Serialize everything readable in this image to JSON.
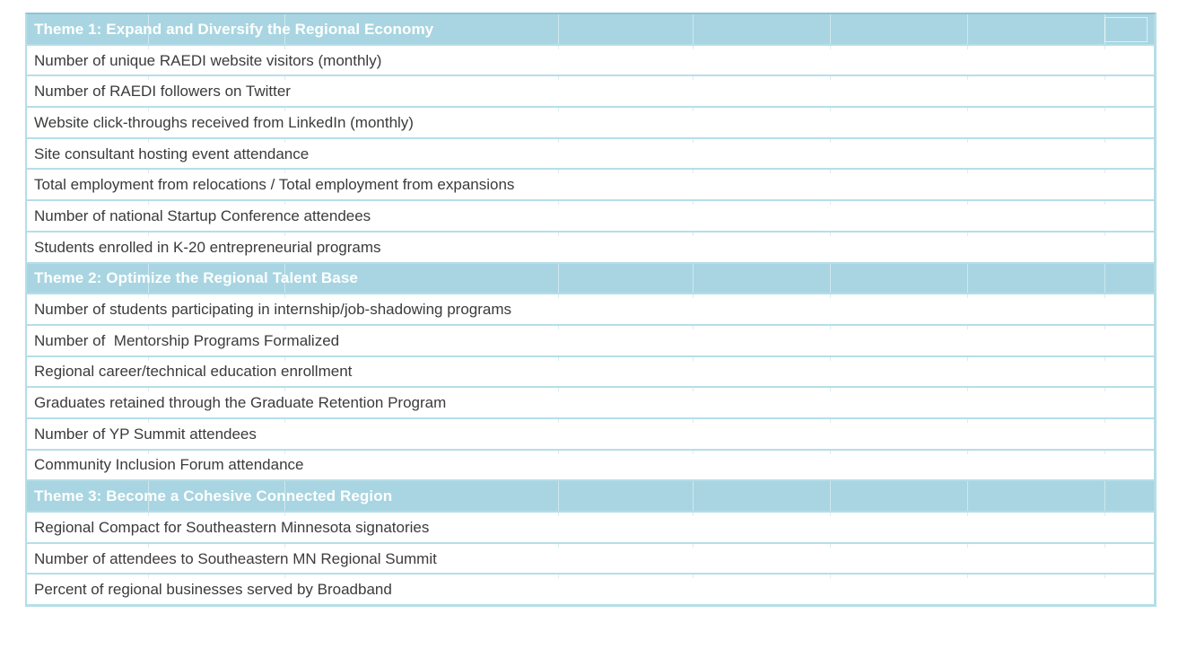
{
  "table": {
    "colors": {
      "header_bg": "#a8d5e1",
      "row_border": "#b5dee8",
      "top_border": "#8fc2d7",
      "text": "#3b3b3b",
      "header_text": "#ffffff"
    },
    "sections": [
      {
        "header": "Theme 1: Expand and Diversify the Regional Economy",
        "rows": [
          "Number of unique RAEDI website visitors (monthly)",
          "Number of RAEDI followers on Twitter",
          "Website click-throughs received from LinkedIn (monthly)",
          "Site consultant hosting event attendance",
          "Total employment from relocations / Total employment from expansions",
          "Number of national Startup Conference attendees",
          "Students enrolled in K-20 entrepreneurial programs"
        ]
      },
      {
        "header": "Theme 2: Optimize the Regional Talent Base",
        "rows": [
          "Number of students participating in internship/job-shadowing programs",
          "Number of  Mentorship Programs Formalized",
          "Regional career/technical education enrollment",
          "Graduates retained through the Graduate Retention Program",
          "Number of YP Summit attendees",
          "Community Inclusion Forum attendance"
        ]
      },
      {
        "header": "Theme 3: Become a Cohesive Connected Region",
        "rows": [
          "Regional Compact for Southeastern Minnesota signatories",
          "Number of attendees to Southeastern MN Regional Summit",
          "Percent of regional businesses served by Broadband"
        ]
      }
    ]
  }
}
